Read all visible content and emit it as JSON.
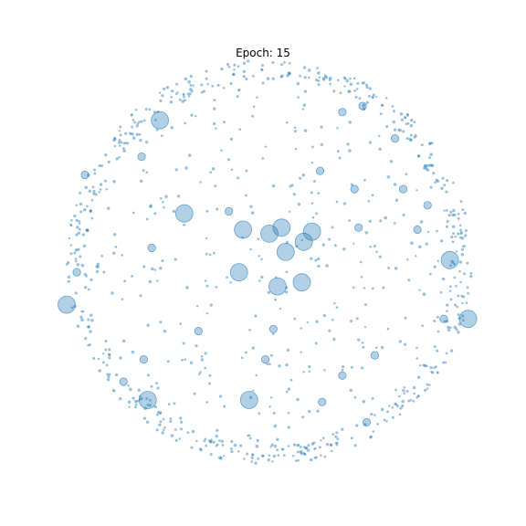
{
  "chart_data": {
    "type": "scatter",
    "title": "Epoch: 15",
    "xlabel": "",
    "ylabel": "",
    "axes_visible": false,
    "grid": false,
    "legend": "none",
    "colors": {
      "fill": "#1f77b4",
      "fill_opacity": 0.35,
      "stroke": "#1f77b4",
      "stroke_opacity": 0.6
    },
    "xlim": [
      -1.05,
      1.05
    ],
    "ylim": [
      -1.05,
      1.05
    ],
    "point_count_small": 900,
    "series": [
      {
        "large_points": [
          [
            -0.42,
            0.24,
            10
          ],
          [
            -0.13,
            0.16,
            10
          ],
          [
            0.0,
            0.14,
            10
          ],
          [
            0.06,
            0.17,
            10
          ],
          [
            0.17,
            0.1,
            10
          ],
          [
            0.21,
            0.15,
            10
          ],
          [
            0.08,
            0.05,
            10
          ],
          [
            -0.15,
            -0.05,
            10
          ],
          [
            0.04,
            -0.12,
            10
          ],
          [
            0.16,
            -0.1,
            10
          ],
          [
            -0.54,
            0.7,
            10
          ],
          [
            -1.0,
            -0.21,
            10
          ],
          [
            0.89,
            0.01,
            10
          ],
          [
            0.98,
            -0.28,
            10
          ],
          [
            -0.6,
            -0.68,
            10
          ],
          [
            -0.1,
            -0.68,
            10
          ],
          [
            -0.2,
            0.25,
            5
          ],
          [
            0.42,
            0.36,
            5
          ],
          [
            -0.63,
            0.52,
            5
          ],
          [
            0.25,
            0.45,
            5
          ],
          [
            0.78,
            0.28,
            5
          ],
          [
            0.73,
            0.16,
            5
          ],
          [
            -0.58,
            0.07,
            5
          ],
          [
            -0.91,
            0.43,
            5
          ],
          [
            0.52,
            -0.46,
            5
          ],
          [
            -0.35,
            -0.34,
            5
          ],
          [
            -0.72,
            -0.59,
            5
          ],
          [
            -0.62,
            -0.48,
            5
          ],
          [
            0.62,
            0.61,
            5
          ],
          [
            0.46,
            0.77,
            5
          ],
          [
            0.36,
            0.74,
            5
          ],
          [
            0.02,
            -0.33,
            5
          ],
          [
            -0.02,
            -0.48,
            5
          ],
          [
            0.26,
            -0.69,
            5
          ],
          [
            0.36,
            -0.56,
            5
          ],
          [
            0.48,
            -0.79,
            5
          ],
          [
            -0.95,
            -0.05,
            5
          ],
          [
            0.86,
            -0.28,
            5
          ],
          [
            0.66,
            0.36,
            5
          ],
          [
            0.44,
            0.17,
            5
          ]
        ]
      }
    ]
  }
}
